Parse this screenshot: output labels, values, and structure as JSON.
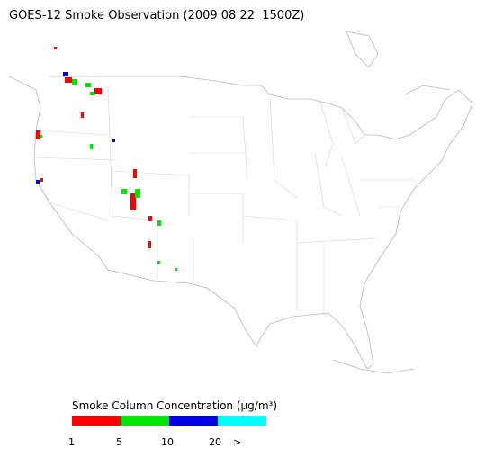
{
  "header": {
    "title": "GOES-12 Smoke Observation (2009 08 22  1500Z)"
  },
  "legend": {
    "title": "Smoke Column Concentration (μg/m³)",
    "colors": [
      "#ff0000",
      "#00e600",
      "#0000e6",
      "#00ffff"
    ],
    "labels": [
      "1",
      "5",
      "10",
      "20",
      ">"
    ]
  }
}
